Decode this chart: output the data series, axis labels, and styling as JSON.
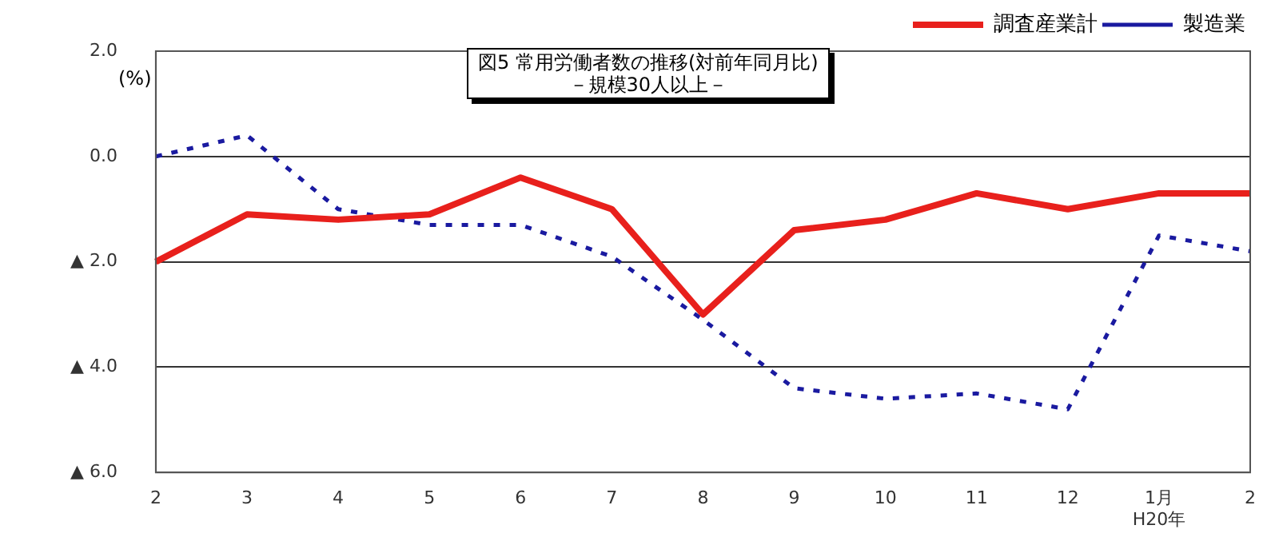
{
  "chart_data": {
    "type": "line",
    "title": "図5 常用労働者数の推移(対前年同月比)",
    "subtitle": "－規模30人以上－",
    "ylabel": "(%)",
    "categories": [
      "2",
      "3",
      "4",
      "5",
      "6",
      "7",
      "8",
      "9",
      "10",
      "11",
      "12",
      "1月\nH20年",
      "2"
    ],
    "series": [
      {
        "name": "調査産業計",
        "color": "#e8201c",
        "line_style": "solid",
        "values": [
          -2.0,
          -1.1,
          -1.2,
          -1.1,
          -0.4,
          -1.0,
          -3.0,
          -1.4,
          -1.2,
          -0.7,
          -1.0,
          -0.7,
          -0.7
        ]
      },
      {
        "name": "製造業",
        "color": "#1a1aa0",
        "line_style": "dotted",
        "values": [
          0.0,
          0.4,
          -1.0,
          -1.3,
          -1.3,
          -1.9,
          -3.1,
          -4.4,
          -4.6,
          -4.5,
          -4.8,
          -1.5,
          -1.8
        ]
      }
    ],
    "ylim": [
      -6,
      2
    ],
    "yticks": [
      {
        "value": -6,
        "label": "▲ 6.0"
      },
      {
        "value": -4,
        "label": "▲ 4.0"
      },
      {
        "value": -2,
        "label": "▲ 2.0"
      },
      {
        "value": 0,
        "label": "0.0"
      },
      {
        "value": 2,
        "label": "2.0"
      }
    ],
    "grid": "y",
    "legend": "top right",
    "marker": "none"
  }
}
